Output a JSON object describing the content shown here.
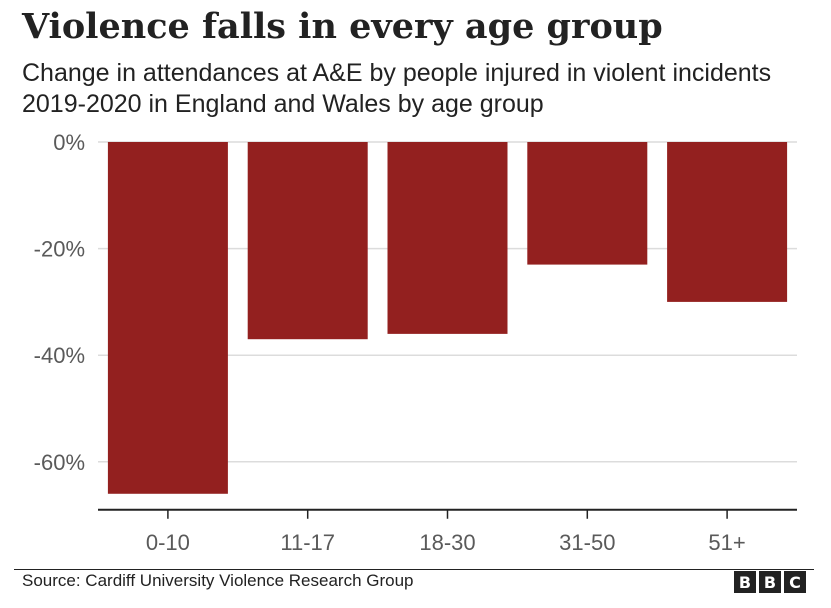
{
  "header": {
    "title": "Violence falls in every age group",
    "subtitle": "Change in attendances at A&E by people injured in violent incidents 2019-2020 in England and Wales by age group"
  },
  "footer": {
    "source": "Source: Cardiff University Violence Research Group",
    "logo_letters": [
      "B",
      "B",
      "C"
    ]
  },
  "colors": {
    "bar": "#93201f",
    "grid": "#dcdcdc",
    "axis": "#222222",
    "tick_text": "#5a5a5a"
  },
  "chart_data": {
    "type": "bar",
    "title": "Violence falls in every age group",
    "subtitle": "Change in attendances at A&E by people injured in violent incidents 2019-2020 in England and Wales by age group",
    "xlabel": "",
    "ylabel": "",
    "categories": [
      "0-10",
      "11-17",
      "18-30",
      "31-50",
      "51+"
    ],
    "values": [
      -66,
      -37,
      -36,
      -23,
      -30
    ],
    "unit": "%",
    "ylim": [
      -69,
      0
    ],
    "yticks": [
      0,
      -20,
      -40,
      -60
    ],
    "ytick_labels": [
      "0%",
      "-20%",
      "-40%",
      "-60%"
    ],
    "grid": true,
    "legend": "none"
  }
}
